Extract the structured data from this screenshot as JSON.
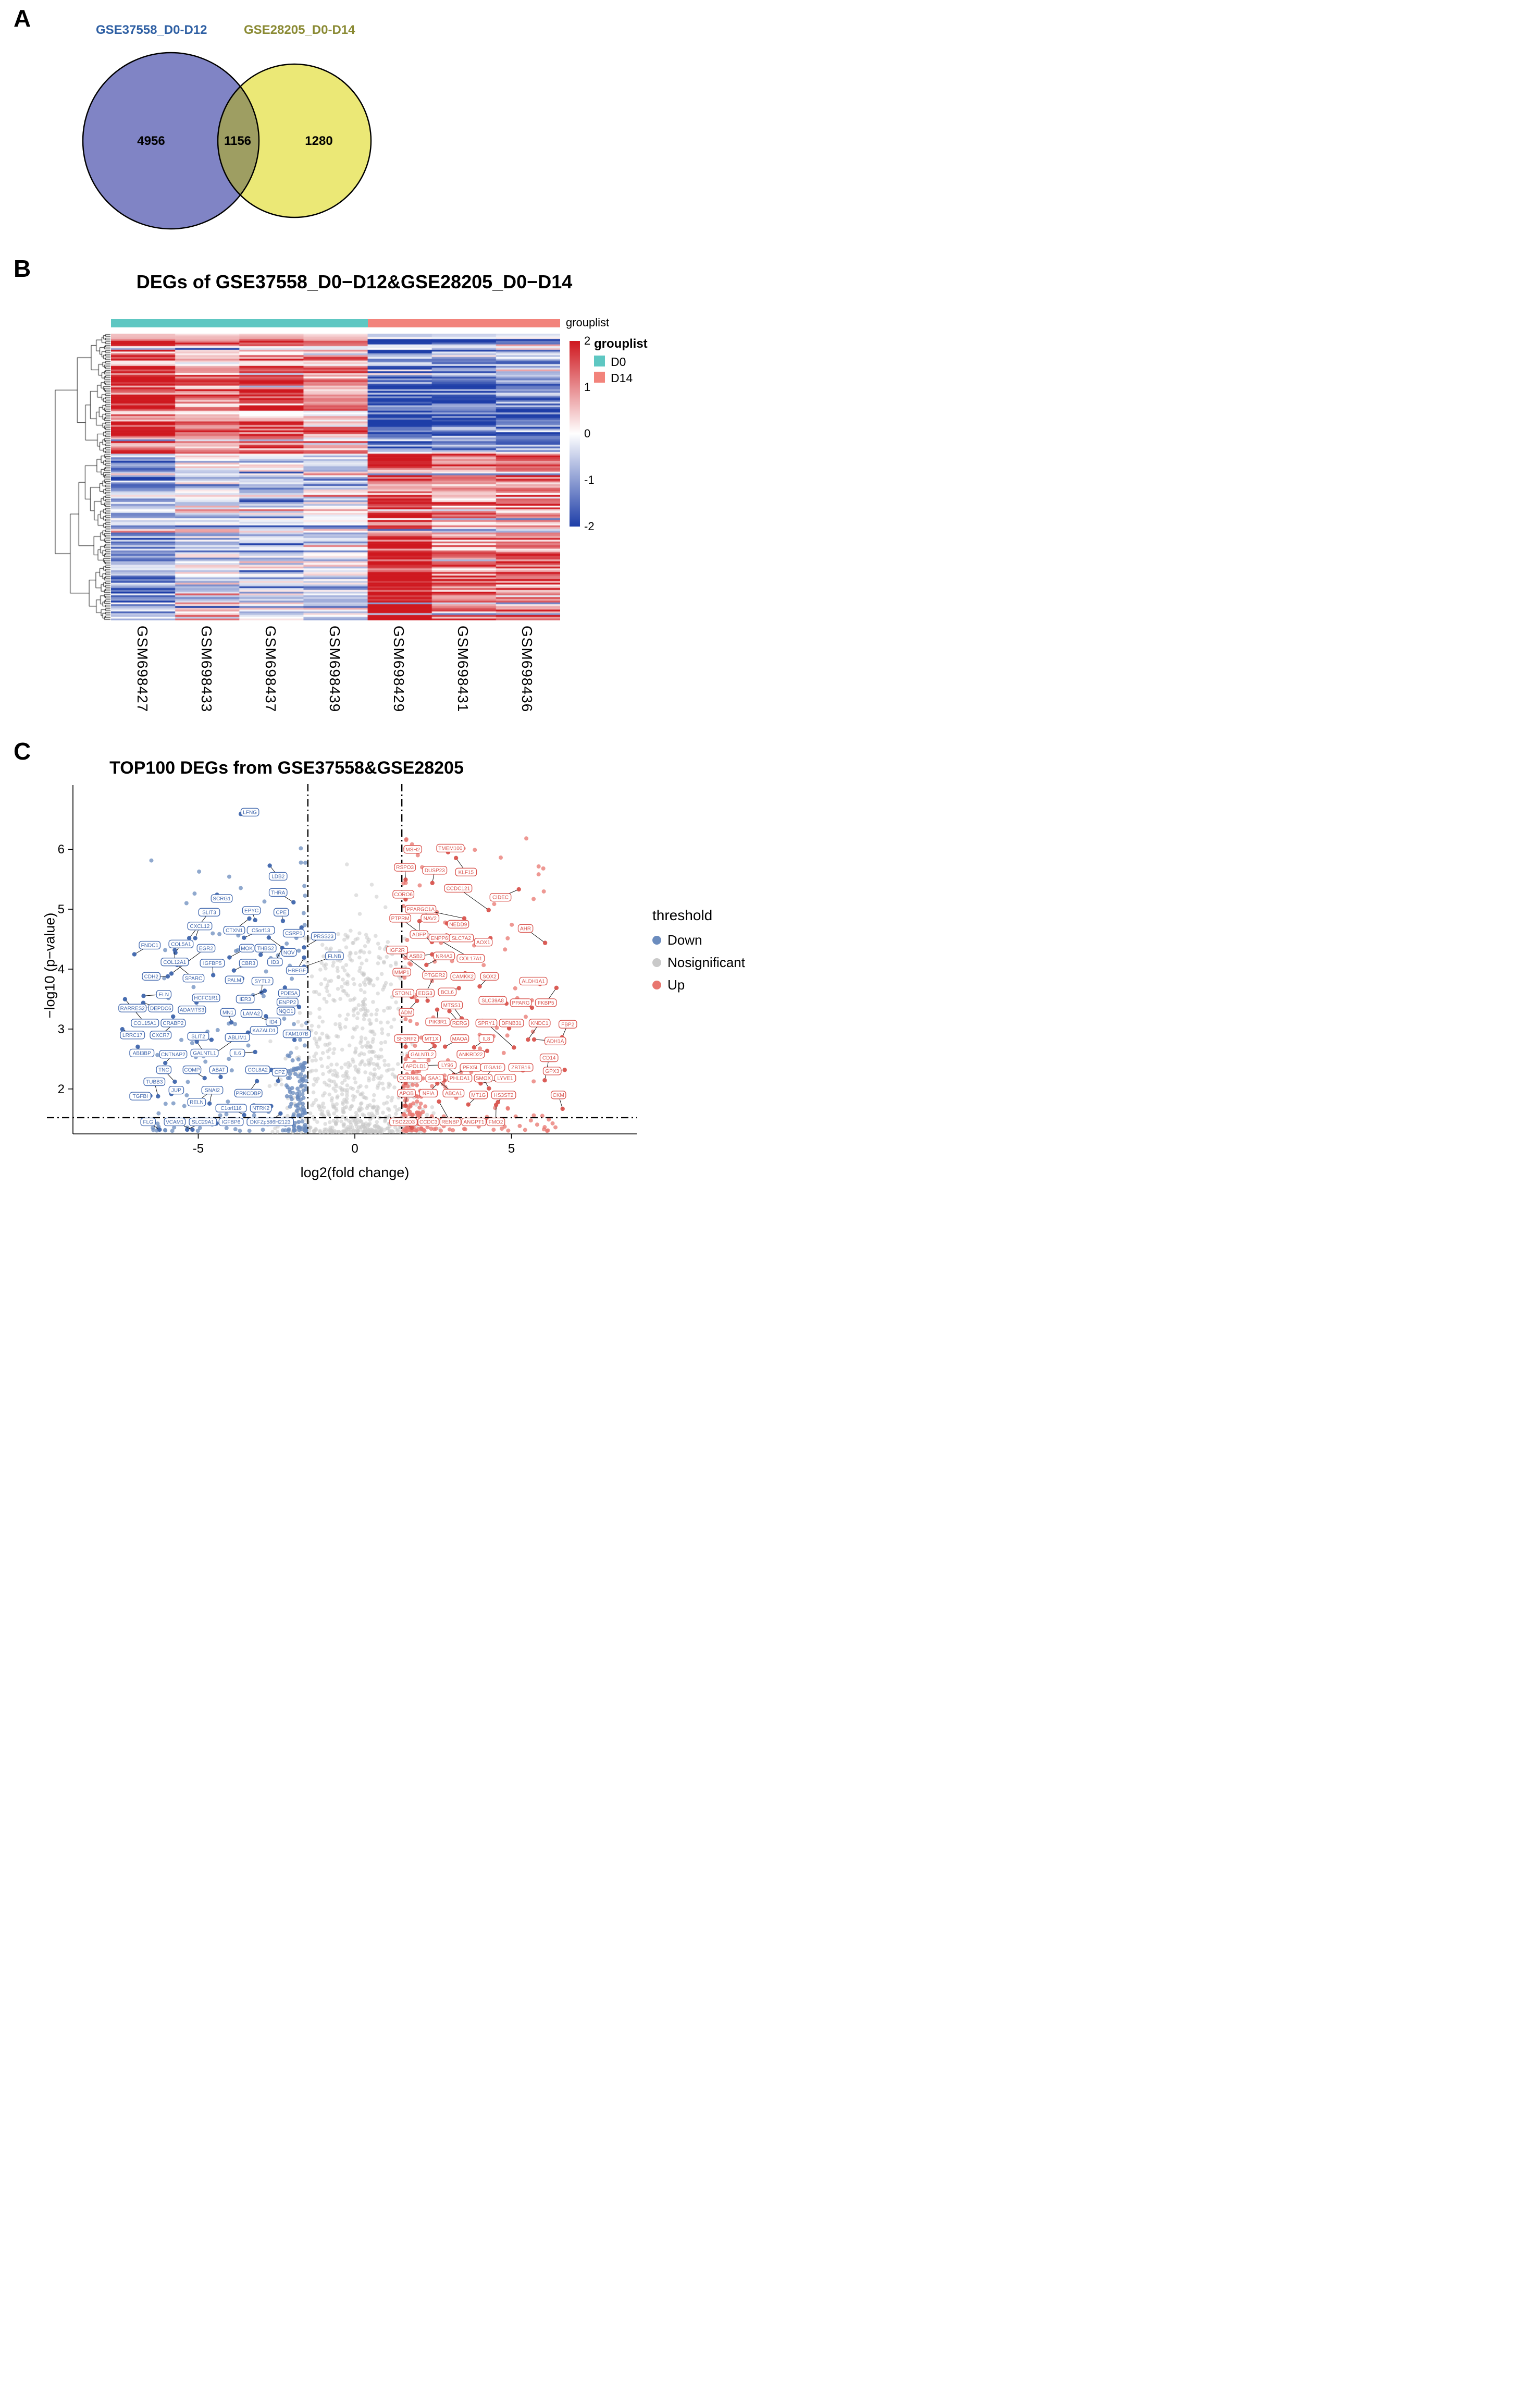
{
  "panels": {
    "a": "A",
    "b": "B",
    "c": "C"
  },
  "chart_data": [
    {
      "type": "venn",
      "panel": "A",
      "sets": [
        {
          "label": "GSE37558_D0-D12",
          "count": "4956",
          "label_color": "#2e5fa3",
          "fill": "#8084c5"
        },
        {
          "label": "GSE28205_D0-D14",
          "count": "1280",
          "label_color": "#8a8a33",
          "fill": "#ebe876"
        }
      ],
      "overlap": {
        "count": "1156",
        "fill": "#9e9e62"
      }
    },
    {
      "type": "heatmap",
      "panel": "B",
      "title": "DEGs of GSE37558_D0−D12&GSE28205_D0−D14",
      "annotation_label": "grouplist",
      "columns": [
        "GSM698427",
        "GSM698433",
        "GSM698437",
        "GSM698439",
        "GSM698429",
        "GSM698431",
        "GSM698436"
      ],
      "column_groups": [
        "D0",
        "D0",
        "D0",
        "D0",
        "D14",
        "D14",
        "D14"
      ],
      "group_colors": {
        "D0": "#5ec7c2",
        "D14": "#f2837b"
      },
      "legend": {
        "title": "grouplist",
        "items": [
          {
            "label": "D0",
            "color": "#5ec7c2"
          },
          {
            "label": "D14",
            "color": "#f2837b"
          }
        ]
      },
      "colorbar": {
        "ticks": [
          "2",
          "1",
          "0",
          "-1",
          "-2"
        ],
        "top_color": "#cf181f",
        "mid_color": "#ffffff",
        "bottom_color": "#1e3ea8"
      },
      "rows": 160,
      "row_clusters": [
        {
          "fraction": 0.42,
          "col_means": [
            1.5,
            0.75,
            1.25,
            0.7,
            -1.15,
            -1.0,
            -0.75
          ]
        },
        {
          "fraction": 0.58,
          "col_means": [
            -1.0,
            -0.4,
            -0.55,
            -0.5,
            1.45,
            0.9,
            1.0
          ]
        }
      ],
      "cell_noise": 0.5,
      "row_noise": 0.4,
      "seed": 13
    },
    {
      "type": "scatter",
      "panel": "C",
      "title": "TOP100 DEGs from GSE37558&GSE28205",
      "xlabel": "log2(fold change)",
      "ylabel": "−log10 (p−value)",
      "xlim": [
        -9,
        9
      ],
      "ylim": [
        1.25,
        6.95
      ],
      "xticks": [
        "-5",
        "0",
        "5"
      ],
      "xtick_values": [
        -5,
        0,
        5
      ],
      "yticks": [
        "2",
        "3",
        "4",
        "5",
        "6"
      ],
      "ytick_values": [
        2,
        3,
        4,
        5,
        6
      ],
      "threshold_x": [
        -1.5,
        1.5
      ],
      "threshold_y": 1.52,
      "legend": {
        "title": "threshold",
        "items": [
          {
            "label": "Down",
            "color": "#6b8cbe"
          },
          {
            "label": "Nosignificant",
            "color": "#c9c9c9"
          },
          {
            "label": "Up",
            "color": "#e8766f"
          }
        ]
      },
      "point_colors": {
        "down": "#6b8cbe",
        "nosig": "#c9c9c9",
        "up": "#e8766f"
      },
      "label_colors": {
        "down": "#3f66ad",
        "up": "#d9544e"
      },
      "background_counts": {
        "nosig": 760,
        "down": 150,
        "up": 150
      },
      "seed": 29,
      "genes_down": [
        [
          "LFNG",
          -3.35,
          6.62
        ],
        [
          "LDB2",
          -2.45,
          5.55
        ],
        [
          "THRA",
          -2.45,
          5.28
        ],
        [
          "SCRG1",
          -4.25,
          5.18
        ],
        [
          "SLIT3",
          -4.65,
          4.95
        ],
        [
          "EPYC",
          -3.3,
          4.98
        ],
        [
          "CPE",
          -2.35,
          4.95
        ],
        [
          "CXCL12",
          -4.95,
          4.72
        ],
        [
          "CTXN1",
          -3.85,
          4.65
        ],
        [
          "C5orf13",
          -3.0,
          4.65
        ],
        [
          "CSRP1",
          -1.95,
          4.6
        ],
        [
          "PRSS23",
          -1.0,
          4.55
        ],
        [
          "FNDC1",
          -6.55,
          4.4
        ],
        [
          "COL5A1",
          -5.55,
          4.42
        ],
        [
          "EGR2",
          -4.75,
          4.35
        ],
        [
          "MOK",
          -3.45,
          4.35
        ],
        [
          "THBS2",
          -2.85,
          4.35
        ],
        [
          "NOV",
          -2.1,
          4.28
        ],
        [
          "FLNB",
          -0.65,
          4.22
        ],
        [
          "COL12A1",
          -5.75,
          4.12
        ],
        [
          "IGFBP5",
          -4.55,
          4.1
        ],
        [
          "CBR3",
          -3.4,
          4.1
        ],
        [
          "ID3",
          -2.55,
          4.12
        ],
        [
          "HBEGF",
          -1.85,
          3.98
        ],
        [
          "CDH2",
          -6.5,
          3.88
        ],
        [
          "SPARC",
          -5.15,
          3.85
        ],
        [
          "PALM",
          -3.85,
          3.82
        ],
        [
          "SYTL2",
          -2.95,
          3.8
        ],
        [
          "PDE5A",
          -2.1,
          3.6
        ],
        [
          "ELN",
          -6.1,
          3.58
        ],
        [
          "HCFC1R1",
          -4.75,
          3.52
        ],
        [
          "IER3",
          -3.5,
          3.5
        ],
        [
          "ENPP2",
          -2.15,
          3.45
        ],
        [
          "RARRES2",
          -7.1,
          3.35
        ],
        [
          "DEPDC6",
          -6.2,
          3.35
        ],
        [
          "ADAMTS3",
          -5.2,
          3.32
        ],
        [
          "MN1",
          -4.05,
          3.28
        ],
        [
          "LAMA2",
          -3.3,
          3.26
        ],
        [
          "NQO1",
          -2.2,
          3.3
        ],
        [
          "ID4",
          -2.6,
          3.12
        ],
        [
          "COL15A1",
          -6.7,
          3.1
        ],
        [
          "CRABP2",
          -5.8,
          3.1
        ],
        [
          "LRRC17",
          -7.1,
          2.9
        ],
        [
          "CXCR7",
          -6.2,
          2.9
        ],
        [
          "SLIT2",
          -5.0,
          2.88
        ],
        [
          "ABLIM1",
          -3.75,
          2.86
        ],
        [
          "KAZALD1",
          -2.9,
          2.98
        ],
        [
          "FAM107B",
          -1.85,
          2.92
        ],
        [
          "ABI3BP",
          -6.8,
          2.6
        ],
        [
          "CNTNAP2",
          -5.8,
          2.58
        ],
        [
          "GALNTL1",
          -4.8,
          2.6
        ],
        [
          "IL6",
          -3.75,
          2.6
        ],
        [
          "TNC",
          -6.1,
          2.32
        ],
        [
          "COMP",
          -5.2,
          2.32
        ],
        [
          "ABAT",
          -4.35,
          2.32
        ],
        [
          "COL8A2",
          -3.1,
          2.32
        ],
        [
          "CPZ",
          -2.4,
          2.28
        ],
        [
          "TUBB3",
          -6.4,
          2.12
        ],
        [
          "JUP",
          -5.7,
          1.98
        ],
        [
          "SNAI2",
          -4.55,
          1.98
        ],
        [
          "PRKCDBP",
          -3.4,
          1.93
        ],
        [
          "TGFBI",
          -6.85,
          1.88
        ],
        [
          "RELN",
          -5.05,
          1.78
        ],
        [
          "C1orf116",
          -3.95,
          1.68
        ],
        [
          "NTRK2",
          -3.0,
          1.68
        ],
        [
          "FLG",
          -6.6,
          1.45
        ],
        [
          "VCAM1",
          -5.75,
          1.45
        ],
        [
          "SLC29A1",
          -4.85,
          1.45
        ],
        [
          "IGFBP6",
          -3.95,
          1.45
        ],
        [
          "DKFZp586H2123",
          -2.7,
          1.45
        ]
      ],
      "genes_up": [
        [
          "MSH2",
          1.85,
          6.0
        ],
        [
          "TMEM100",
          3.05,
          6.02
        ],
        [
          "RSPO3",
          1.6,
          5.7
        ],
        [
          "DUSP23",
          2.55,
          5.65
        ],
        [
          "KLF15",
          3.55,
          5.62
        ],
        [
          "CORO6",
          1.55,
          5.25
        ],
        [
          "CCDC121",
          3.3,
          5.35
        ],
        [
          "CIDEC",
          4.65,
          5.2
        ],
        [
          "PPARGC1A",
          2.1,
          5.0
        ],
        [
          "PTPRM",
          1.45,
          4.85
        ],
        [
          "NAV2",
          2.4,
          4.85
        ],
        [
          "NEDD9",
          3.3,
          4.75
        ],
        [
          "AHR",
          5.45,
          4.68
        ],
        [
          "ADFP",
          2.05,
          4.58
        ],
        [
          "ENPP6",
          2.7,
          4.52
        ],
        [
          "SLC7A2",
          3.4,
          4.52
        ],
        [
          "AOX1",
          4.1,
          4.45
        ],
        [
          "IGF2R",
          1.35,
          4.32
        ],
        [
          "ASB2",
          1.95,
          4.22
        ],
        [
          "NR4A3",
          2.85,
          4.22
        ],
        [
          "COL17A1",
          3.7,
          4.18
        ],
        [
          "MMP1",
          1.5,
          3.95
        ],
        [
          "PTGER2",
          2.55,
          3.9
        ],
        [
          "CAMKK2",
          3.45,
          3.88
        ],
        [
          "SOX2",
          4.3,
          3.88
        ],
        [
          "ALDH1A1",
          5.7,
          3.8
        ],
        [
          "STON1",
          1.55,
          3.6
        ],
        [
          "EDG3",
          2.25,
          3.6
        ],
        [
          "BCL6",
          2.95,
          3.62
        ],
        [
          "MTSS1",
          3.1,
          3.4
        ],
        [
          "SLC39A8",
          4.4,
          3.48
        ],
        [
          "PPARG",
          5.3,
          3.44
        ],
        [
          "FKBP5",
          6.1,
          3.44
        ],
        [
          "ADM",
          1.65,
          3.28
        ],
        [
          "PIK3R1",
          2.65,
          3.12
        ],
        [
          "RERG",
          3.35,
          3.1
        ],
        [
          "SPRY1",
          4.2,
          3.1
        ],
        [
          "DFNB31",
          5.0,
          3.1
        ],
        [
          "KNDC1",
          5.9,
          3.1
        ],
        [
          "FBP2",
          6.8,
          3.08
        ],
        [
          "SH3RF2",
          1.65,
          2.84
        ],
        [
          "MT1X",
          2.45,
          2.84
        ],
        [
          "MAOA",
          3.35,
          2.84
        ],
        [
          "IL8",
          4.2,
          2.84
        ],
        [
          "ADH1A",
          6.4,
          2.8
        ],
        [
          "GALNTL2",
          2.15,
          2.58
        ],
        [
          "ANKRD22",
          3.7,
          2.58
        ],
        [
          "CD14",
          6.2,
          2.52
        ],
        [
          "APOLD1",
          1.95,
          2.38
        ],
        [
          "LY96",
          2.95,
          2.4
        ],
        [
          "PEX5L",
          3.7,
          2.36
        ],
        [
          "ITGA10",
          4.4,
          2.36
        ],
        [
          "ZBTB16",
          5.3,
          2.36
        ],
        [
          "GPX3",
          6.3,
          2.3
        ],
        [
          "CCRN4L",
          1.75,
          2.18
        ],
        [
          "SAA1",
          2.55,
          2.18
        ],
        [
          "PHLDA1",
          3.35,
          2.18
        ],
        [
          "SMOX",
          4.1,
          2.18
        ],
        [
          "LYVE1",
          4.8,
          2.18
        ],
        [
          "APOB",
          1.65,
          1.93
        ],
        [
          "NFIA",
          2.35,
          1.93
        ],
        [
          "ABCA1",
          3.15,
          1.93
        ],
        [
          "MT1G",
          3.95,
          1.9
        ],
        [
          "HS3ST2",
          4.75,
          1.9
        ],
        [
          "CKM",
          6.5,
          1.9
        ],
        [
          "TSC22D3",
          1.55,
          1.45
        ],
        [
          "CCDC3",
          2.35,
          1.45
        ],
        [
          "RENBP",
          3.05,
          1.45
        ],
        [
          "ANGPT1",
          3.8,
          1.45
        ],
        [
          "FMO2",
          4.5,
          1.45
        ]
      ]
    }
  ]
}
